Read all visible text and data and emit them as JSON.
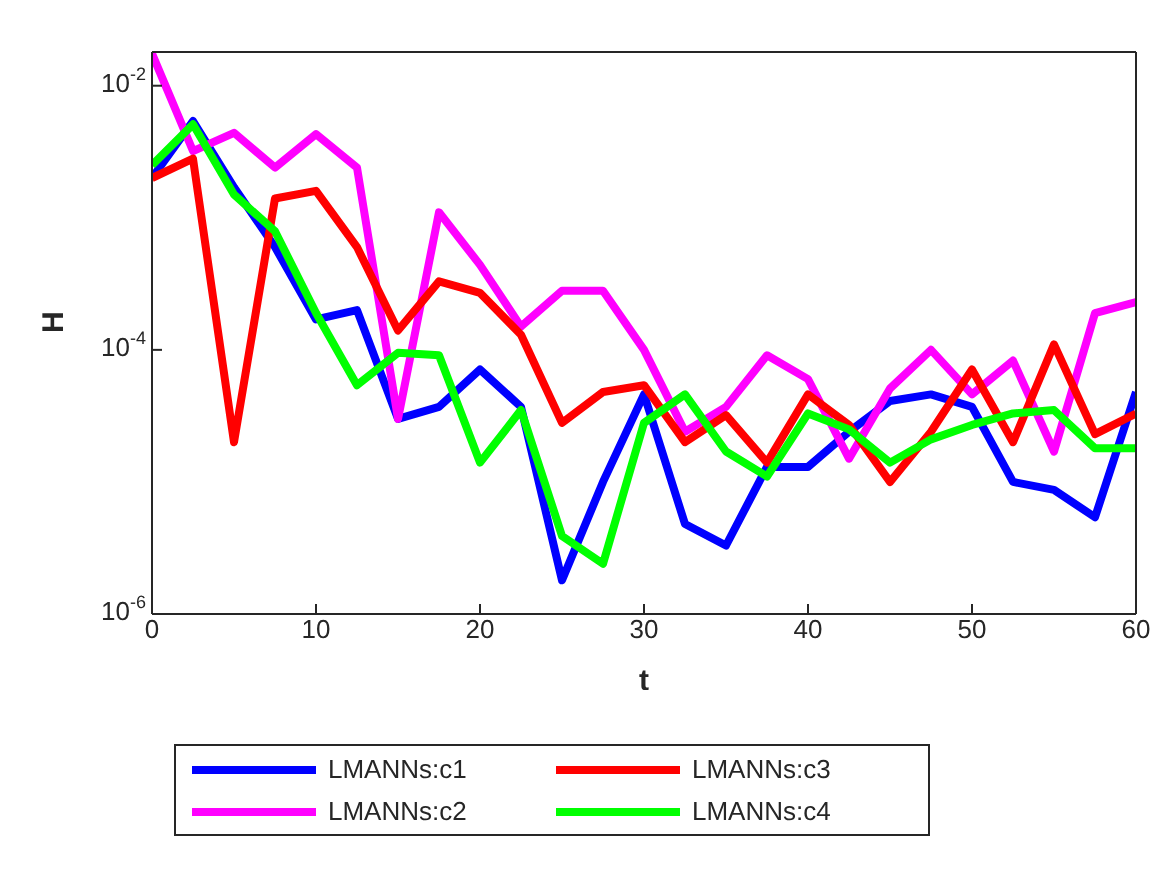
{
  "chart_data": {
    "type": "line",
    "xlabel": "t",
    "ylabel": "H",
    "log": "y",
    "grid": false,
    "legend": "bottom",
    "marker": "none",
    "line_style": "solid",
    "x": [
      0,
      2.5,
      5,
      7.5,
      10,
      12.5,
      15,
      17.5,
      20,
      22.5,
      25,
      27.5,
      30,
      32.5,
      35,
      37.5,
      40,
      42.5,
      45,
      47.5,
      50,
      52.5,
      55,
      57.5,
      60
    ],
    "xlim": [
      0,
      60
    ],
    "xticks": [
      0,
      10,
      20,
      30,
      40,
      50,
      60
    ],
    "ylim": [
      1e-06,
      0.018
    ],
    "yticks": [
      {
        "value": 1e-06,
        "label": "10$^{-6}$"
      },
      {
        "value": 0.0001,
        "label": "10$^{-4}$"
      },
      {
        "value": 0.01,
        "label": "10$^{-2}$"
      }
    ],
    "series": [
      {
        "name": "LMANNs:c1",
        "color": "#0000ff",
        "values": [
          0.002,
          0.0054,
          0.0017,
          0.0006,
          0.00017,
          0.0002,
          3e-05,
          3.7e-05,
          7.1e-05,
          3.7e-05,
          1.8e-06,
          1e-05,
          4.6e-05,
          4.8e-06,
          3.3e-06,
          1.3e-05,
          1.3e-05,
          2.4e-05,
          4.1e-05,
          4.6e-05,
          3.7e-05,
          1e-05,
          8.7e-06,
          5.4e-06,
          4.8e-05
        ]
      },
      {
        "name": "LMANNs:c2",
        "color": "#ff00ff",
        "values": [
          0.0175,
          0.0032,
          0.0044,
          0.0024,
          0.0043,
          0.0024,
          3e-05,
          0.0011,
          0.00044,
          0.00015,
          0.00028,
          0.00028,
          0.0001,
          2.4e-05,
          3.7e-05,
          9.1e-05,
          6e-05,
          1.5e-05,
          5.1e-05,
          0.0001,
          4.6e-05,
          8.3e-05,
          1.7e-05,
          0.00019,
          0.00023
        ]
      },
      {
        "name": "LMANNs:c3",
        "color": "#ff0000",
        "values": [
          0.002,
          0.0028,
          2e-05,
          0.0014,
          0.0016,
          0.0006,
          0.00014,
          0.00033,
          0.00027,
          0.00013,
          2.8e-05,
          4.8e-05,
          5.4e-05,
          2e-05,
          3.2e-05,
          1.4e-05,
          4.6e-05,
          2.7e-05,
          1e-05,
          2.4e-05,
          7.1e-05,
          2e-05,
          0.00011,
          2.3e-05,
          3.3e-05
        ]
      },
      {
        "name": "LMANNs:c4",
        "color": "#00ff00",
        "values": [
          0.0025,
          0.0051,
          0.0015,
          0.00079,
          0.00019,
          5.4e-05,
          9.5e-05,
          9.1e-05,
          1.4e-05,
          3.5e-05,
          3.9e-06,
          2.4e-06,
          2.8e-05,
          4.6e-05,
          1.7e-05,
          1.1e-05,
          3.3e-05,
          2.5e-05,
          1.4e-05,
          2.1e-05,
          2.7e-05,
          3.3e-05,
          3.5e-05,
          1.8e-05,
          1.8e-05
        ]
      }
    ]
  }
}
